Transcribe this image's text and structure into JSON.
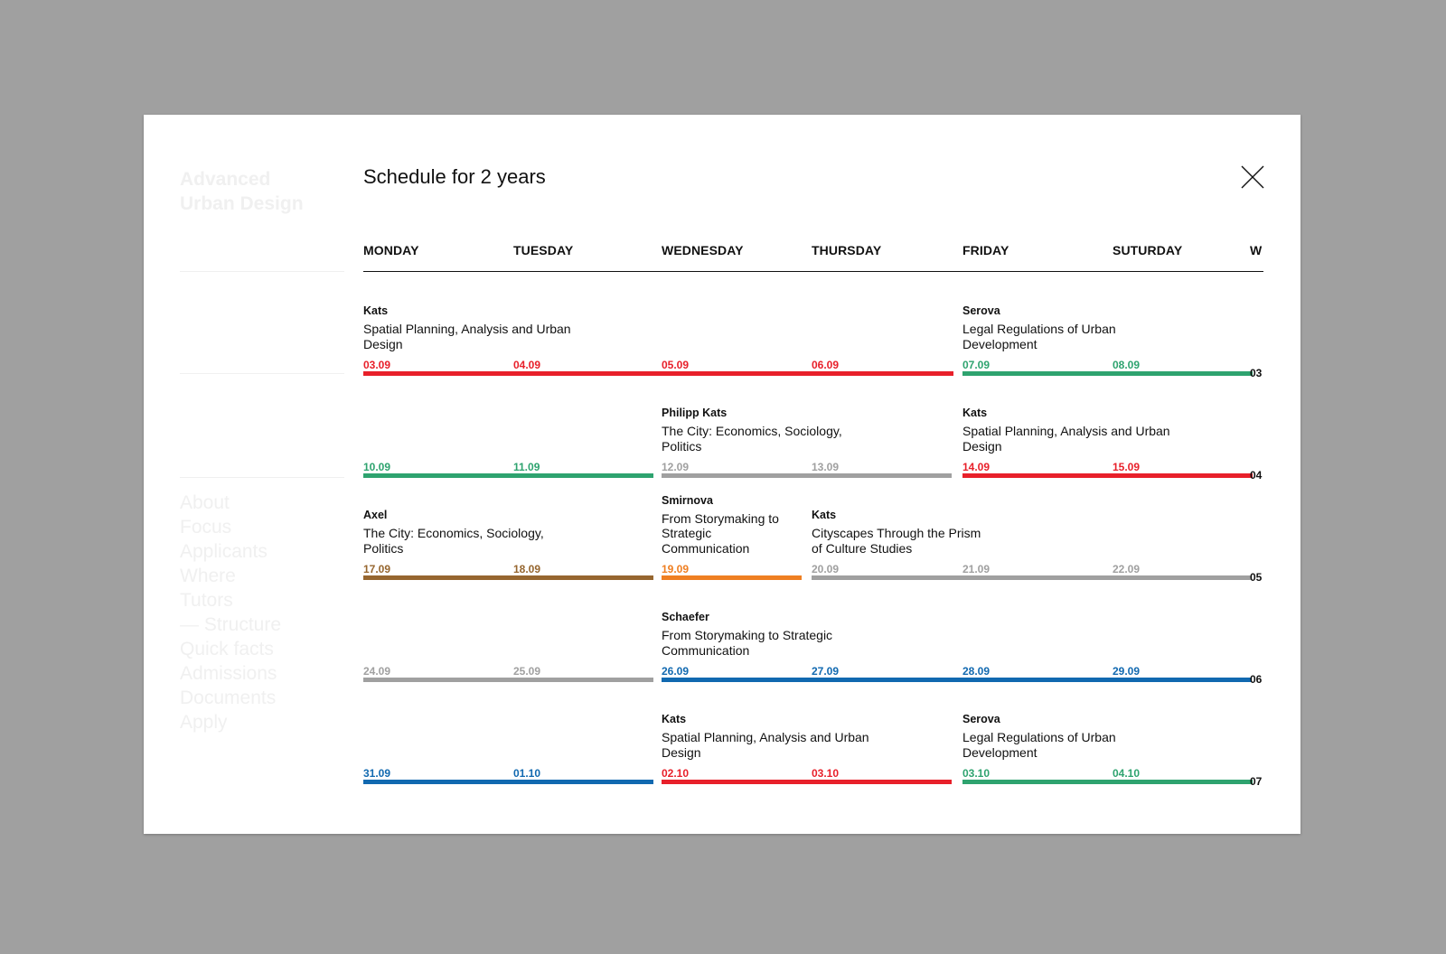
{
  "background_page": {
    "program_title": "Advanced Urban Design",
    "nav": [
      "About",
      "Focus",
      "Applicants",
      "Where",
      "Tutors",
      "— Structure",
      "Quick facts",
      "Admissions",
      "Documents",
      "Apply"
    ]
  },
  "modal": {
    "title": "Schedule for 2 years",
    "close_icon": "close-icon"
  },
  "days": [
    "MONDAY",
    "TUESDAY",
    "WEDNESDAY",
    "THURSDAY",
    "FRIDAY",
    "SUTURDAY",
    "W"
  ],
  "colors": {
    "red": "#e8202a",
    "green": "#2ea36f",
    "grey": "#a0a0a0",
    "brown": "#96662f",
    "orange": "#ef7f22",
    "blue": "#1169b0"
  },
  "weeks": [
    {
      "number": "03",
      "dates": [
        {
          "text": "03.09",
          "color": "red"
        },
        {
          "text": "04.09",
          "color": "red"
        },
        {
          "text": "05.09",
          "color": "red"
        },
        {
          "text": "06.09",
          "color": "red"
        },
        {
          "text": "07.09",
          "color": "green"
        },
        {
          "text": "08.09",
          "color": "green"
        }
      ],
      "events": [
        {
          "tutor": "Kats",
          "course": "Spatial Planning, Analysis and Urban Design",
          "start": 0,
          "span": 4,
          "color": "red"
        },
        {
          "tutor": "Serova",
          "course": "Legal Regulations of Urban Development",
          "start": 4,
          "span": 2,
          "color": "green"
        }
      ]
    },
    {
      "number": "04",
      "dates": [
        {
          "text": "10.09",
          "color": "green"
        },
        {
          "text": "11.09",
          "color": "green"
        },
        {
          "text": "12.09",
          "color": "grey"
        },
        {
          "text": "13.09",
          "color": "grey"
        },
        {
          "text": "14.09",
          "color": "red"
        },
        {
          "text": "15.09",
          "color": "red"
        }
      ],
      "events": [
        {
          "tutor": "",
          "course": "",
          "start": 0,
          "span": 2,
          "color": "green"
        },
        {
          "tutor": "Philipp Kats",
          "course": "The City: Economics, Sociology, Politics",
          "start": 2,
          "span": 2,
          "color": "grey"
        },
        {
          "tutor": "Kats",
          "course": "Spatial Planning, Analysis and Urban Design",
          "start": 4,
          "span": 2,
          "color": "red"
        }
      ]
    },
    {
      "number": "05",
      "dates": [
        {
          "text": "17.09",
          "color": "brown"
        },
        {
          "text": "18.09",
          "color": "brown"
        },
        {
          "text": "19.09",
          "color": "orange"
        },
        {
          "text": "20.09",
          "color": "grey"
        },
        {
          "text": "21.09",
          "color": "grey"
        },
        {
          "text": "22.09",
          "color": "grey"
        }
      ],
      "events": [
        {
          "tutor": "Axel",
          "course": "The City: Economics, Sociology, Politics",
          "start": 0,
          "span": 2,
          "color": "brown"
        },
        {
          "tutor": "Smirnova",
          "course": "From Storymaking to Strategic Communication",
          "start": 2,
          "span": 1,
          "color": "orange"
        },
        {
          "tutor": "Kats",
          "course": "Cityscapes Through the Prism of Culture Studies",
          "start": 3,
          "span": 3,
          "color": "grey"
        }
      ]
    },
    {
      "number": "06",
      "dates": [
        {
          "text": "24.09",
          "color": "grey"
        },
        {
          "text": "25.09",
          "color": "grey"
        },
        {
          "text": "26.09",
          "color": "blue"
        },
        {
          "text": "27.09",
          "color": "blue"
        },
        {
          "text": "28.09",
          "color": "blue"
        },
        {
          "text": "29.09",
          "color": "blue"
        }
      ],
      "events": [
        {
          "tutor": "",
          "course": "",
          "start": 0,
          "span": 2,
          "color": "grey"
        },
        {
          "tutor": "Schaefer",
          "course": "From Storymaking to Strategic Communication",
          "start": 2,
          "span": 4,
          "color": "blue"
        }
      ]
    },
    {
      "number": "07",
      "dates": [
        {
          "text": "31.09",
          "color": "blue"
        },
        {
          "text": "01.10",
          "color": "blue"
        },
        {
          "text": "02.10",
          "color": "red"
        },
        {
          "text": "03.10",
          "color": "red"
        },
        {
          "text": "03.10",
          "color": "green"
        },
        {
          "text": "04.10",
          "color": "green"
        }
      ],
      "events": [
        {
          "tutor": "",
          "course": "",
          "start": 0,
          "span": 2,
          "color": "blue"
        },
        {
          "tutor": "Kats",
          "course": "Spatial Planning, Analysis and Urban Design",
          "start": 2,
          "span": 2,
          "color": "red"
        },
        {
          "tutor": "Serova",
          "course": "Legal Regulations of Urban Development",
          "start": 4,
          "span": 2,
          "color": "green"
        }
      ]
    }
  ]
}
